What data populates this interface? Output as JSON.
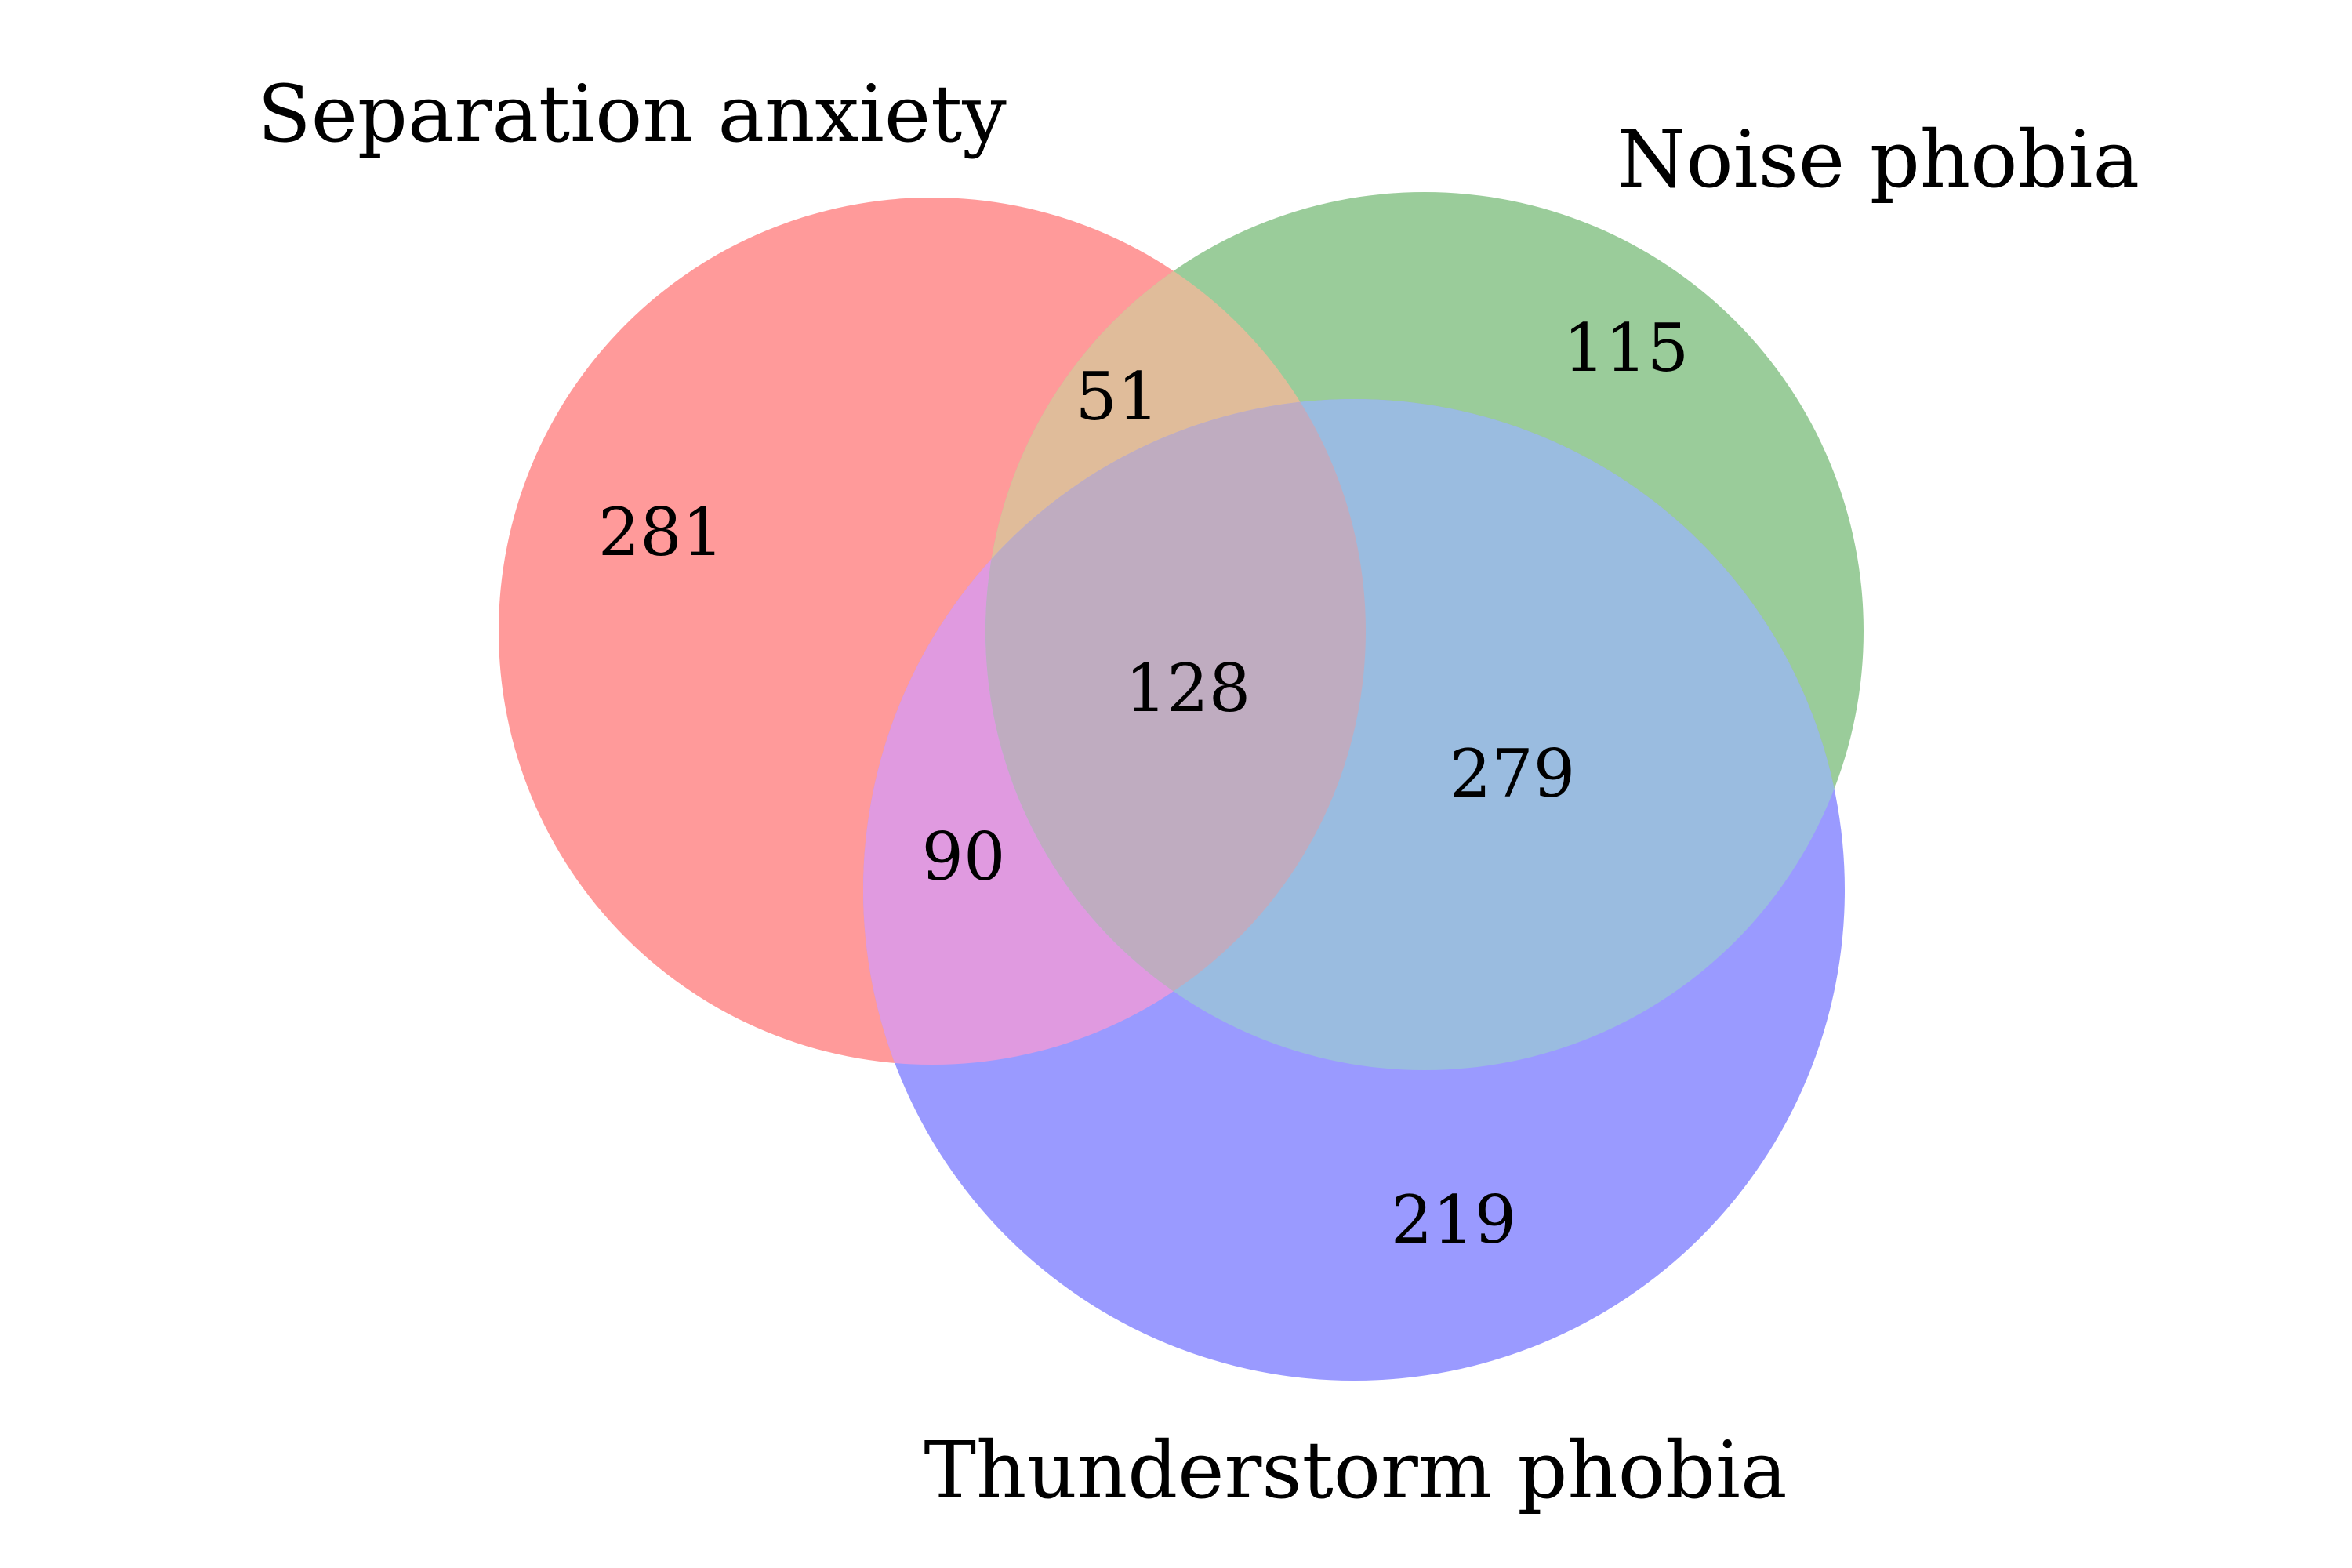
{
  "diagram": {
    "type": "venn3",
    "sets": [
      {
        "key": "A",
        "label": "Separation anxiety",
        "color": "#ff9a9a"
      },
      {
        "key": "B",
        "label": "Noise phobia",
        "color": "#9acc9a"
      },
      {
        "key": "C",
        "label": "Thunderstorm phobia",
        "color": "#9a9aff"
      }
    ],
    "overlap_colors": {
      "A_B": "#e0bc9a",
      "A_C": "#e09ae0",
      "B_C": "#9abce0",
      "A_B_C": "#bfacc0"
    },
    "regions": {
      "A_only": "281",
      "B_only": "115",
      "C_only": "219",
      "A_B_only": "51",
      "A_C_only": "90",
      "B_C_only": "279",
      "A_B_C": "128"
    }
  }
}
